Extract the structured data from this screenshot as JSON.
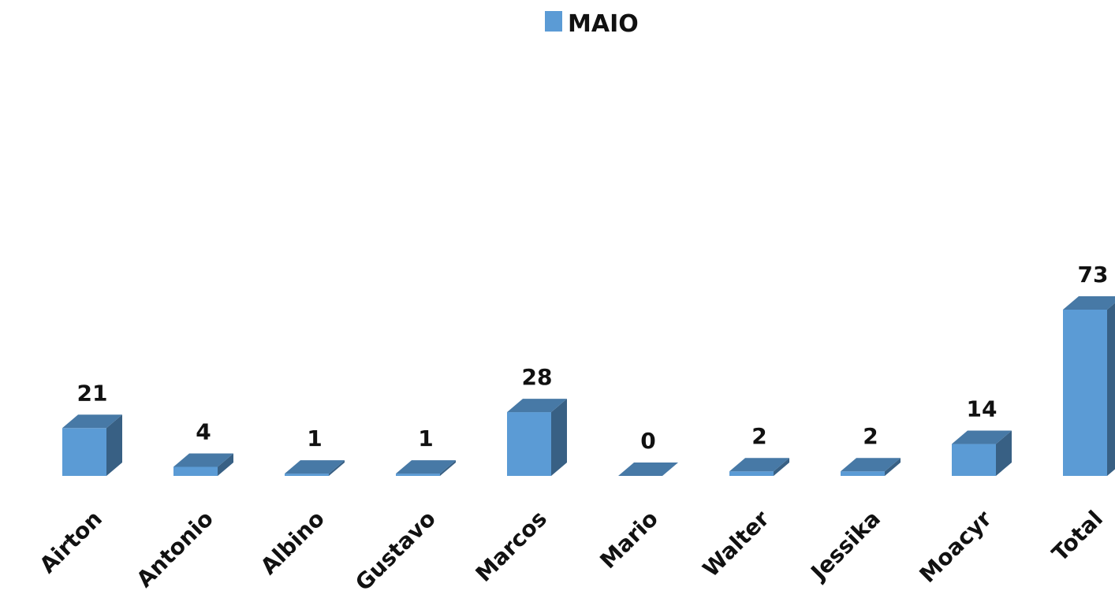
{
  "chart_data": {
    "type": "bar",
    "title": "",
    "xlabel": "",
    "ylabel": "",
    "categories": [
      "Airton",
      "Antonio",
      "Albino",
      "Gustavo",
      "Marcos",
      "Mario",
      "Walter",
      "Jessika",
      "Moacyr",
      "Total"
    ],
    "series": [
      {
        "name": "MAIO",
        "values": [
          21,
          4,
          1,
          1,
          28,
          0,
          2,
          2,
          14,
          73
        ],
        "color": "#5b9bd5"
      }
    ],
    "ylim": [
      0,
      73
    ],
    "grid": false,
    "legend": "top-center",
    "data_labels": true,
    "style": "3d-column"
  }
}
